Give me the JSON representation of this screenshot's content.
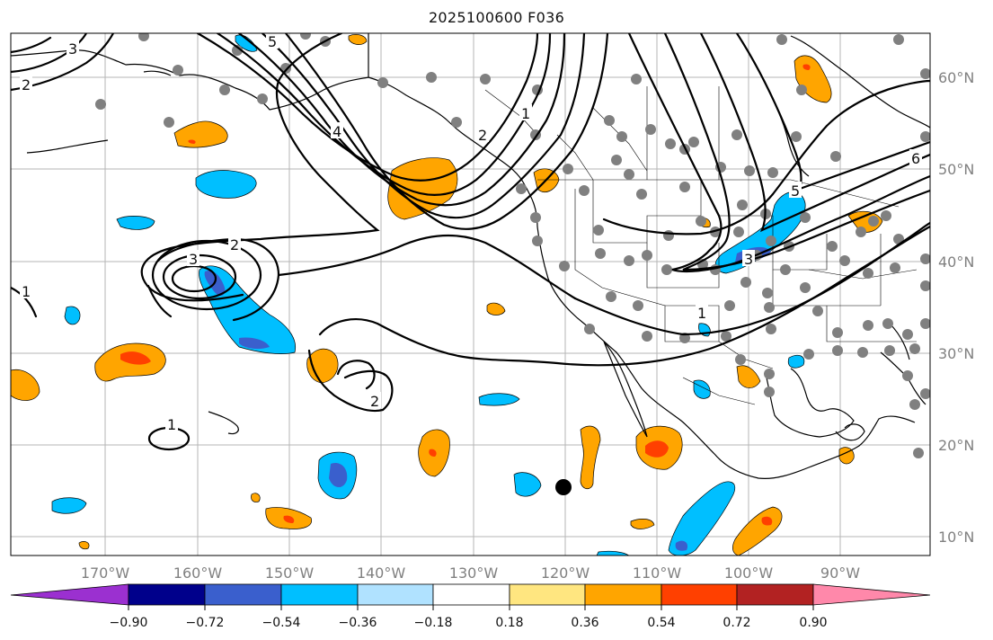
{
  "title": "2025100600 F036",
  "map": {
    "lon_labels": [
      "170°W",
      "160°W",
      "150°W",
      "140°W",
      "130°W",
      "120°W",
      "110°W",
      "100°W",
      "90°W"
    ],
    "lat_labels": [
      "60°N",
      "50°N",
      "40°N",
      "30°N",
      "20°N",
      "10°N"
    ],
    "grid": true,
    "contour_labels": [
      "5",
      "4",
      "3",
      "2",
      "1",
      "2",
      "3",
      "2",
      "1",
      "1",
      "2",
      "3",
      "5",
      "6",
      "1"
    ]
  },
  "colorbar": {
    "tick_labels": [
      "−0.90",
      "−0.72",
      "−0.54",
      "−0.36",
      "−0.18",
      "0.18",
      "0.36",
      "0.54",
      "0.72",
      "0.90"
    ],
    "colors": [
      "#9b30d0",
      "#00008b",
      "#3a5fcd",
      "#00bfff",
      "#b0e2ff",
      "#ffffff",
      "#ffe680",
      "#ffa500",
      "#ff4000",
      "#b22222",
      "#ff88aa"
    ]
  }
}
